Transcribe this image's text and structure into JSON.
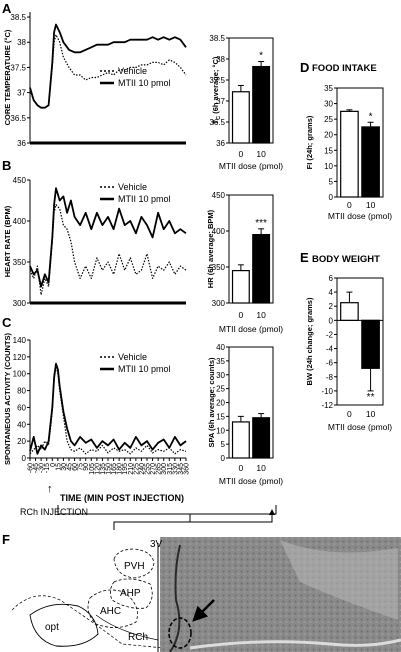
{
  "panel_letters": [
    "A",
    "B",
    "C",
    "D",
    "E",
    "F"
  ],
  "legend": {
    "vehicle": "Vehicle",
    "mtii": "MTII 10 pmol"
  },
  "time_axis_label": "TIME (MIN POST INJECTION)",
  "injection": {
    "label": "RCh INJECTION",
    "arrow_glyph": "↑"
  },
  "dose_axis_label": "MTII dose (pmol)",
  "histology_labels": [
    "PVH",
    "AHP",
    "AHC",
    "opt",
    "RCh",
    "3V"
  ],
  "colors": {
    "black": "#000000",
    "white": "#ffffff"
  },
  "chart_data": [
    {
      "id": "A-line",
      "type": "line",
      "ylabel": "CORE TEMPERATURE (°C)",
      "ylim": [
        36,
        38.6
      ],
      "yticks": [
        36,
        36.5,
        37,
        37.5,
        38,
        38.5
      ],
      "ytick_labels": [
        "36",
        "36.5",
        "37",
        "37.5",
        "38",
        "38.5"
      ],
      "xlim": [
        -60,
        360
      ],
      "series": [
        {
          "name": "Vehicle",
          "style": "dotted",
          "x": [
            -60,
            -50,
            -40,
            -30,
            -20,
            -10,
            0,
            5,
            10,
            20,
            30,
            45,
            60,
            75,
            90,
            105,
            120,
            135,
            150,
            165,
            180,
            195,
            210,
            225,
            240,
            255,
            270,
            285,
            300,
            315,
            330,
            345,
            360
          ],
          "y": [
            37.05,
            36.85,
            36.75,
            36.7,
            36.7,
            36.75,
            37.5,
            38.0,
            38.15,
            38.0,
            37.7,
            37.5,
            37.35,
            37.35,
            37.25,
            37.3,
            37.3,
            37.35,
            37.4,
            37.35,
            37.45,
            37.45,
            37.5,
            37.5,
            37.55,
            37.55,
            37.6,
            37.6,
            37.55,
            37.65,
            37.6,
            37.5,
            37.35
          ]
        },
        {
          "name": "MTII 10 pmol",
          "style": "solid",
          "x": [
            -60,
            -50,
            -40,
            -30,
            -20,
            -10,
            0,
            5,
            10,
            20,
            30,
            45,
            60,
            75,
            90,
            105,
            120,
            135,
            150,
            165,
            180,
            195,
            210,
            225,
            240,
            255,
            270,
            285,
            300,
            315,
            330,
            345,
            360
          ],
          "y": [
            37.1,
            36.85,
            36.75,
            36.7,
            36.7,
            36.75,
            37.6,
            38.2,
            38.35,
            38.2,
            38.0,
            37.85,
            37.8,
            37.8,
            37.85,
            37.9,
            37.95,
            37.95,
            37.95,
            38.0,
            38.0,
            38.0,
            38.05,
            38.05,
            38.05,
            38.05,
            38.1,
            38.05,
            38.1,
            38.05,
            38.1,
            38.05,
            37.9
          ]
        }
      ]
    },
    {
      "id": "A-bar",
      "type": "bar",
      "ylabel_main": "T",
      "ylabel_sub": "C",
      "ylabel_rest": " (6h average; °C)",
      "ylim": [
        36,
        38.5
      ],
      "yticks": [
        36,
        36.5,
        37,
        37.5,
        38,
        38.5
      ],
      "ytick_labels": [
        "36",
        "36.5",
        "37",
        "37.5",
        "38",
        "38.5"
      ],
      "categories": [
        "0",
        "10"
      ],
      "values": [
        37.22,
        37.82
      ],
      "errors": [
        0.15,
        0.12
      ],
      "fills": [
        "#ffffff",
        "#000000"
      ],
      "sig": [
        "",
        "*"
      ]
    },
    {
      "id": "B-line",
      "type": "line",
      "ylabel": "HEART RATE (BPM)",
      "ylim": [
        300,
        450
      ],
      "yticks": [
        300,
        350,
        400,
        450
      ],
      "ytick_labels": [
        "300",
        "350",
        "400",
        "450"
      ],
      "xlim": [
        -60,
        360
      ],
      "series": [
        {
          "name": "Vehicle",
          "style": "dotted",
          "x": [
            -60,
            -50,
            -40,
            -30,
            -20,
            -10,
            0,
            5,
            10,
            20,
            30,
            40,
            50,
            60,
            75,
            90,
            105,
            120,
            135,
            150,
            165,
            180,
            195,
            210,
            225,
            240,
            255,
            270,
            285,
            300,
            315,
            330,
            345,
            360
          ],
          "y": [
            340,
            330,
            345,
            310,
            330,
            320,
            375,
            410,
            420,
            415,
            395,
            390,
            375,
            350,
            330,
            345,
            330,
            355,
            340,
            350,
            335,
            360,
            340,
            355,
            335,
            340,
            360,
            330,
            345,
            340,
            350,
            335,
            345,
            340
          ]
        },
        {
          "name": "MTII 10 pmol",
          "style": "solid",
          "x": [
            -60,
            -50,
            -40,
            -30,
            -20,
            -10,
            0,
            5,
            10,
            20,
            30,
            40,
            50,
            60,
            75,
            90,
            105,
            120,
            135,
            150,
            165,
            180,
            195,
            210,
            225,
            240,
            255,
            270,
            285,
            300,
            315,
            330,
            345,
            360
          ],
          "y": [
            345,
            335,
            340,
            320,
            335,
            325,
            380,
            420,
            440,
            425,
            430,
            410,
            425,
            405,
            395,
            410,
            390,
            410,
            395,
            405,
            390,
            415,
            395,
            400,
            385,
            405,
            395,
            380,
            410,
            390,
            400,
            385,
            390,
            385
          ]
        }
      ]
    },
    {
      "id": "B-bar",
      "type": "bar",
      "ylabel": "HR (6h average; BPM)",
      "ylim": [
        300,
        450
      ],
      "yticks": [
        300,
        350,
        400,
        450
      ],
      "ytick_labels": [
        "300",
        "350",
        "400",
        "450"
      ],
      "categories": [
        "0",
        "10"
      ],
      "values": [
        345,
        395
      ],
      "errors": [
        8,
        8
      ],
      "fills": [
        "#ffffff",
        "#000000"
      ],
      "sig": [
        "",
        "***"
      ]
    },
    {
      "id": "C-line",
      "type": "line",
      "ylabel": "SPONTANEOUS ACTIVITY (COUNTS)",
      "ylim": [
        0,
        140
      ],
      "yticks": [
        0,
        20,
        40,
        60,
        80,
        100,
        120,
        140
      ],
      "ytick_labels": [
        "0",
        "20",
        "40",
        "60",
        "80",
        "100",
        "120",
        "140"
      ],
      "xlim": [
        -60,
        360
      ],
      "xticks": [
        -60,
        -45,
        -30,
        -15,
        0,
        15,
        30,
        45,
        60,
        75,
        90,
        105,
        120,
        135,
        150,
        165,
        180,
        195,
        210,
        225,
        240,
        255,
        270,
        285,
        300,
        315,
        330,
        345,
        360
      ],
      "xtick_labels": [
        "-60",
        "-45",
        "-30",
        "-15",
        "0",
        "15",
        "30",
        "45",
        "60",
        "75",
        "90",
        "105",
        "120",
        "135",
        "150",
        "165",
        "180",
        "195",
        "210",
        "225",
        "240",
        "255",
        "270",
        "285",
        "300",
        "315",
        "330",
        "345",
        "360"
      ],
      "series": [
        {
          "name": "Vehicle",
          "style": "dotted",
          "x": [
            -60,
            -50,
            -40,
            -30,
            -20,
            -10,
            0,
            5,
            10,
            15,
            20,
            30,
            40,
            50,
            60,
            75,
            90,
            105,
            120,
            135,
            150,
            165,
            180,
            195,
            210,
            225,
            240,
            255,
            270,
            285,
            300,
            315,
            330,
            345,
            360
          ],
          "y": [
            5,
            10,
            15,
            10,
            20,
            15,
            55,
            100,
            110,
            100,
            80,
            50,
            20,
            10,
            8,
            12,
            5,
            10,
            8,
            15,
            6,
            12,
            8,
            10,
            5,
            12,
            8,
            15,
            6,
            10,
            8,
            12,
            5,
            10,
            8
          ]
        },
        {
          "name": "MTII 10 pmol",
          "style": "solid",
          "x": [
            -60,
            -50,
            -40,
            -30,
            -20,
            -10,
            0,
            5,
            10,
            15,
            20,
            30,
            40,
            50,
            60,
            75,
            90,
            105,
            120,
            135,
            150,
            165,
            180,
            195,
            210,
            225,
            240,
            255,
            270,
            285,
            300,
            315,
            330,
            345,
            360
          ],
          "y": [
            8,
            25,
            5,
            15,
            10,
            20,
            60,
            95,
            112,
            105,
            85,
            55,
            35,
            20,
            15,
            25,
            18,
            22,
            12,
            20,
            15,
            22,
            10,
            18,
            12,
            25,
            15,
            20,
            10,
            18,
            22,
            12,
            25,
            15,
            20
          ]
        }
      ]
    },
    {
      "id": "C-bar",
      "type": "bar",
      "ylabel": "SPA (6h average; counts)",
      "ylim": [
        0,
        40
      ],
      "yticks": [
        0,
        5,
        10,
        15,
        20,
        25,
        30,
        35,
        40
      ],
      "ytick_labels": [
        "0",
        "5",
        "10",
        "15",
        "20",
        "25",
        "30",
        "35",
        "40"
      ],
      "categories": [
        "0",
        "10"
      ],
      "values": [
        13,
        14.5
      ],
      "errors": [
        2,
        1.5
      ],
      "fills": [
        "#ffffff",
        "#000000"
      ],
      "sig": [
        "",
        ""
      ]
    },
    {
      "id": "D-bar",
      "type": "bar",
      "title": "FOOD INTAKE",
      "ylabel": "FI (24h; grams)",
      "ylim": [
        0,
        35
      ],
      "yticks": [
        0,
        5,
        10,
        15,
        20,
        25,
        30,
        35
      ],
      "ytick_labels": [
        "0",
        "5",
        "10",
        "15",
        "20",
        "25",
        "30",
        "35"
      ],
      "categories": [
        "0",
        "10"
      ],
      "values": [
        27.5,
        22.5
      ],
      "errors": [
        0.5,
        1.5
      ],
      "fills": [
        "#ffffff",
        "#000000"
      ],
      "sig": [
        "",
        "*"
      ]
    },
    {
      "id": "E-bar",
      "type": "bar",
      "title": "BODY WEIGHT",
      "ylabel": "BW (24h change; grams)",
      "ylim": [
        -12,
        6
      ],
      "yticks": [
        -12,
        -10,
        -8,
        -6,
        -4,
        -2,
        0,
        2,
        4,
        6
      ],
      "ytick_labels": [
        "-12",
        "-10",
        "-8",
        "-6",
        "-4",
        "-2",
        "0",
        "2",
        "4",
        "6"
      ],
      "categories": [
        "0",
        "10"
      ],
      "values": [
        2.5,
        -6.8
      ],
      "errors": [
        1.5,
        3.2
      ],
      "fills": [
        "#ffffff",
        "#000000"
      ],
      "sig": [
        "",
        "**"
      ]
    }
  ]
}
